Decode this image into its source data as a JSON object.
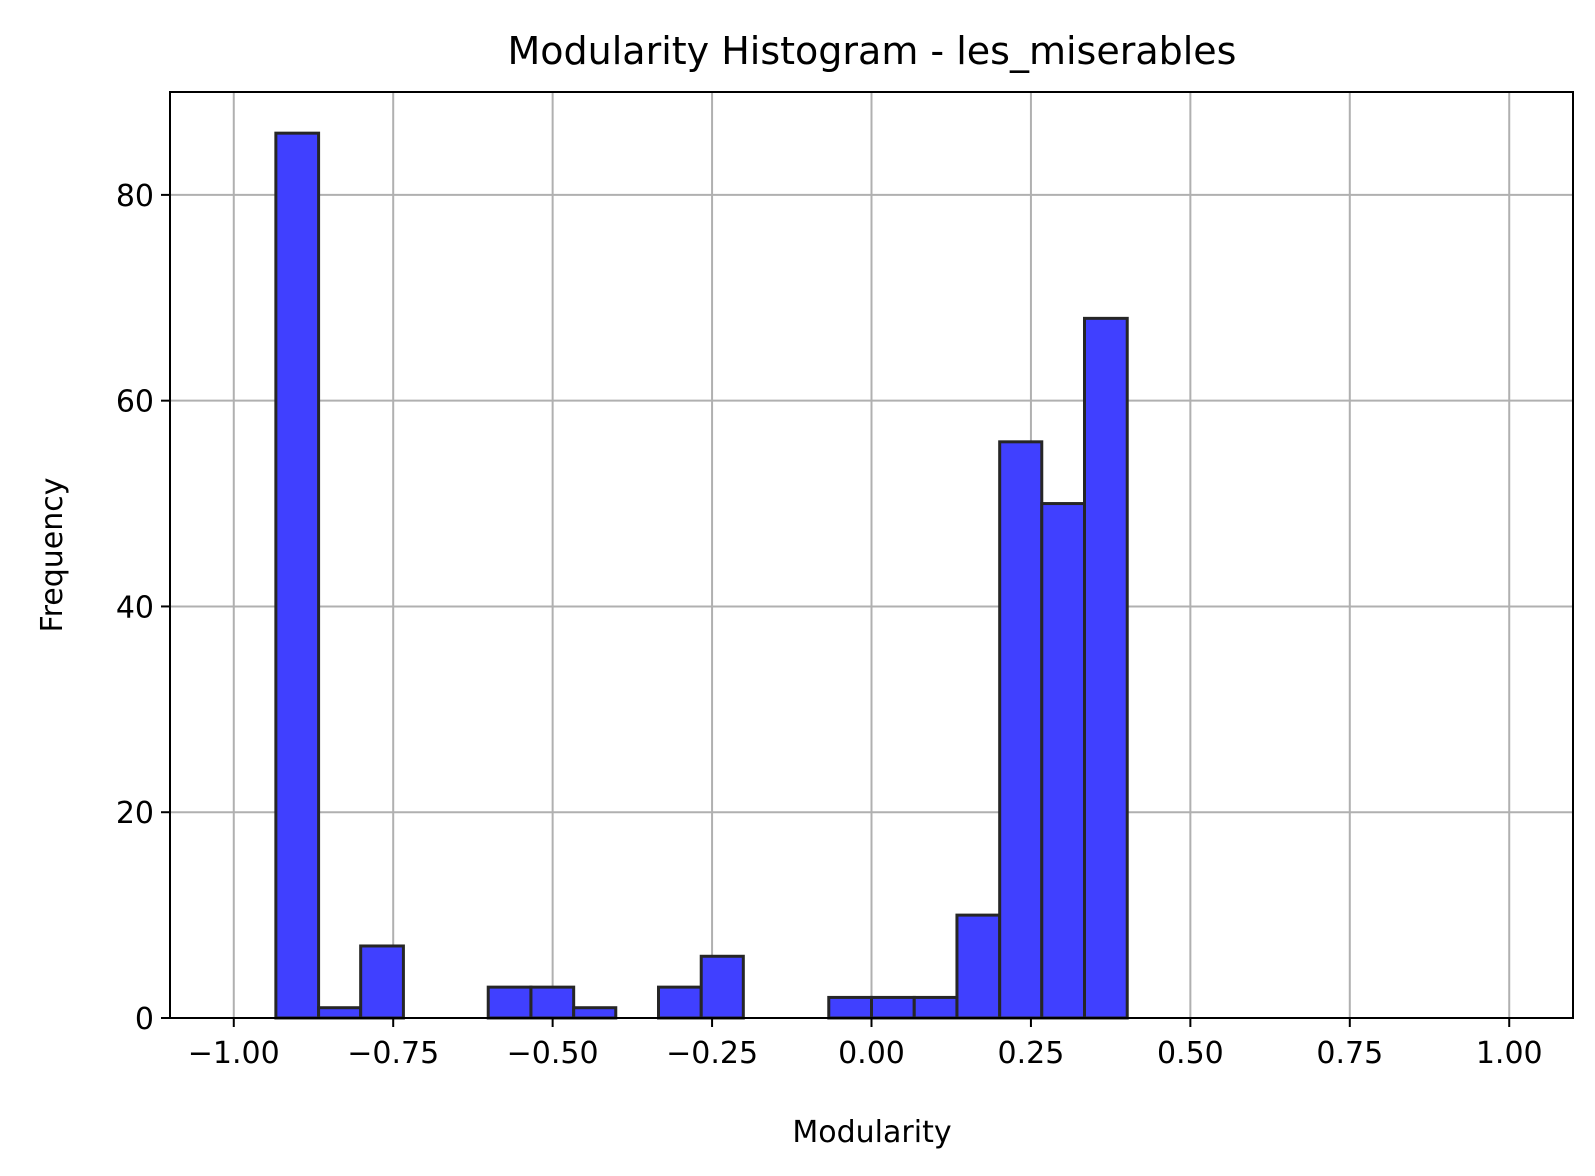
{
  "chart_data": {
    "type": "bar",
    "title": "Modularity Histogram - les_miserables",
    "xlabel": "Modularity",
    "ylabel": "Frequency",
    "xlim": [
      -1.1,
      1.1
    ],
    "ylim": [
      0,
      90
    ],
    "xticks": [
      -1.0,
      -0.75,
      -0.5,
      -0.25,
      0.0,
      0.25,
      0.5,
      0.75,
      1.0
    ],
    "xtick_labels": [
      "−1.00",
      "−0.75",
      "−0.50",
      "−0.25",
      "0.00",
      "0.25",
      "0.50",
      "0.75",
      "1.00"
    ],
    "yticks": [
      0,
      20,
      40,
      60,
      80
    ],
    "ytick_labels": [
      "0",
      "20",
      "40",
      "60",
      "80"
    ],
    "grid": true,
    "bar_color": "#4040ff",
    "edge_color": "#262626",
    "bins": [
      {
        "x0": -0.934,
        "x1": -0.867,
        "count": 86
      },
      {
        "x0": -0.867,
        "x1": -0.801,
        "count": 1
      },
      {
        "x0": -0.801,
        "x1": -0.734,
        "count": 7
      },
      {
        "x0": -0.734,
        "x1": -0.667,
        "count": 0
      },
      {
        "x0": -0.667,
        "x1": -0.601,
        "count": 0
      },
      {
        "x0": -0.601,
        "x1": -0.534,
        "count": 3
      },
      {
        "x0": -0.534,
        "x1": -0.467,
        "count": 3
      },
      {
        "x0": -0.467,
        "x1": -0.401,
        "count": 1
      },
      {
        "x0": -0.401,
        "x1": -0.334,
        "count": 0
      },
      {
        "x0": -0.334,
        "x1": -0.267,
        "count": 3
      },
      {
        "x0": -0.267,
        "x1": -0.201,
        "count": 6
      },
      {
        "x0": -0.201,
        "x1": -0.134,
        "count": 0
      },
      {
        "x0": -0.134,
        "x1": -0.067,
        "count": 0
      },
      {
        "x0": -0.067,
        "x1": 0.0,
        "count": 2
      },
      {
        "x0": 0.0,
        "x1": 0.067,
        "count": 2
      },
      {
        "x0": 0.067,
        "x1": 0.134,
        "count": 2
      },
      {
        "x0": 0.134,
        "x1": 0.201,
        "count": 10
      },
      {
        "x0": 0.201,
        "x1": 0.267,
        "count": 56
      },
      {
        "x0": 0.267,
        "x1": 0.334,
        "count": 50
      },
      {
        "x0": 0.334,
        "x1": 0.401,
        "count": 68
      }
    ]
  }
}
